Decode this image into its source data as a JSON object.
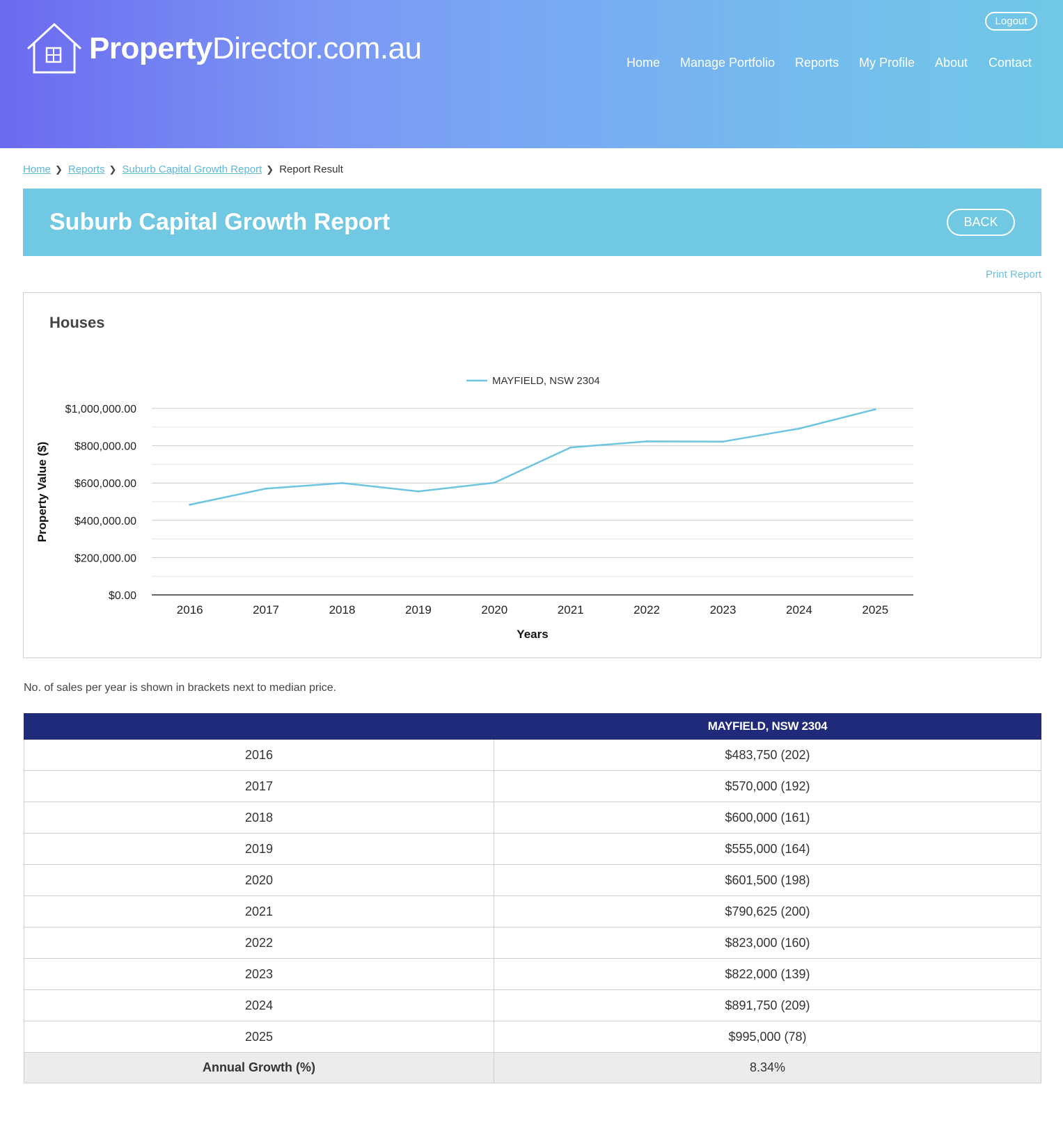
{
  "brand": {
    "name_bold": "Property",
    "name_rest": "Director.com.au"
  },
  "header": {
    "logout_label": "Logout"
  },
  "nav": {
    "items": [
      {
        "label": "Home"
      },
      {
        "label": "Manage Portfolio"
      },
      {
        "label": "Reports"
      },
      {
        "label": "My Profile"
      },
      {
        "label": "About"
      },
      {
        "label": "Contact"
      }
    ]
  },
  "breadcrumb": {
    "home": "Home",
    "reports": "Reports",
    "report": "Suburb Capital Growth Report",
    "current": "Report Result"
  },
  "page": {
    "title": "Suburb Capital Growth Report",
    "back_label": "BACK",
    "print_label": "Print Report",
    "chart_heading": "Houses",
    "note": "No. of sales per year is shown in brackets next to median price."
  },
  "colors": {
    "line": "#6cc4e0",
    "header_table": "#1f2a7a",
    "banner": "#71c8e3"
  },
  "chart_data": {
    "type": "line",
    "title": "Houses",
    "xlabel": "Years",
    "ylabel": "Property Value ($)",
    "categories": [
      "2016",
      "2017",
      "2018",
      "2019",
      "2020",
      "2021",
      "2022",
      "2023",
      "2024",
      "2025"
    ],
    "series": [
      {
        "name": "MAYFIELD, NSW 2304",
        "values": [
          483750,
          570000,
          600000,
          555000,
          601500,
          790625,
          823000,
          822000,
          891750,
          995000
        ]
      }
    ],
    "ylim": [
      0,
      1000000
    ],
    "yticks": [
      "$0.00",
      "$200,000.00",
      "$400,000.00",
      "$600,000.00",
      "$800,000.00",
      "$1,000,000.00"
    ],
    "legend": "top-center",
    "grid": true
  },
  "table": {
    "headers": [
      "",
      "MAYFIELD, NSW 2304"
    ],
    "rows": [
      [
        "2016",
        "$483,750 (202)"
      ],
      [
        "2017",
        "$570,000 (192)"
      ],
      [
        "2018",
        "$600,000 (161)"
      ],
      [
        "2019",
        "$555,000 (164)"
      ],
      [
        "2020",
        "$601,500 (198)"
      ],
      [
        "2021",
        "$790,625 (200)"
      ],
      [
        "2022",
        "$823,000 (160)"
      ],
      [
        "2023",
        "$822,000 (139)"
      ],
      [
        "2024",
        "$891,750 (209)"
      ],
      [
        "2025",
        "$995,000 (78)"
      ]
    ],
    "footer": [
      "Annual Growth (%)",
      "8.34%"
    ]
  }
}
